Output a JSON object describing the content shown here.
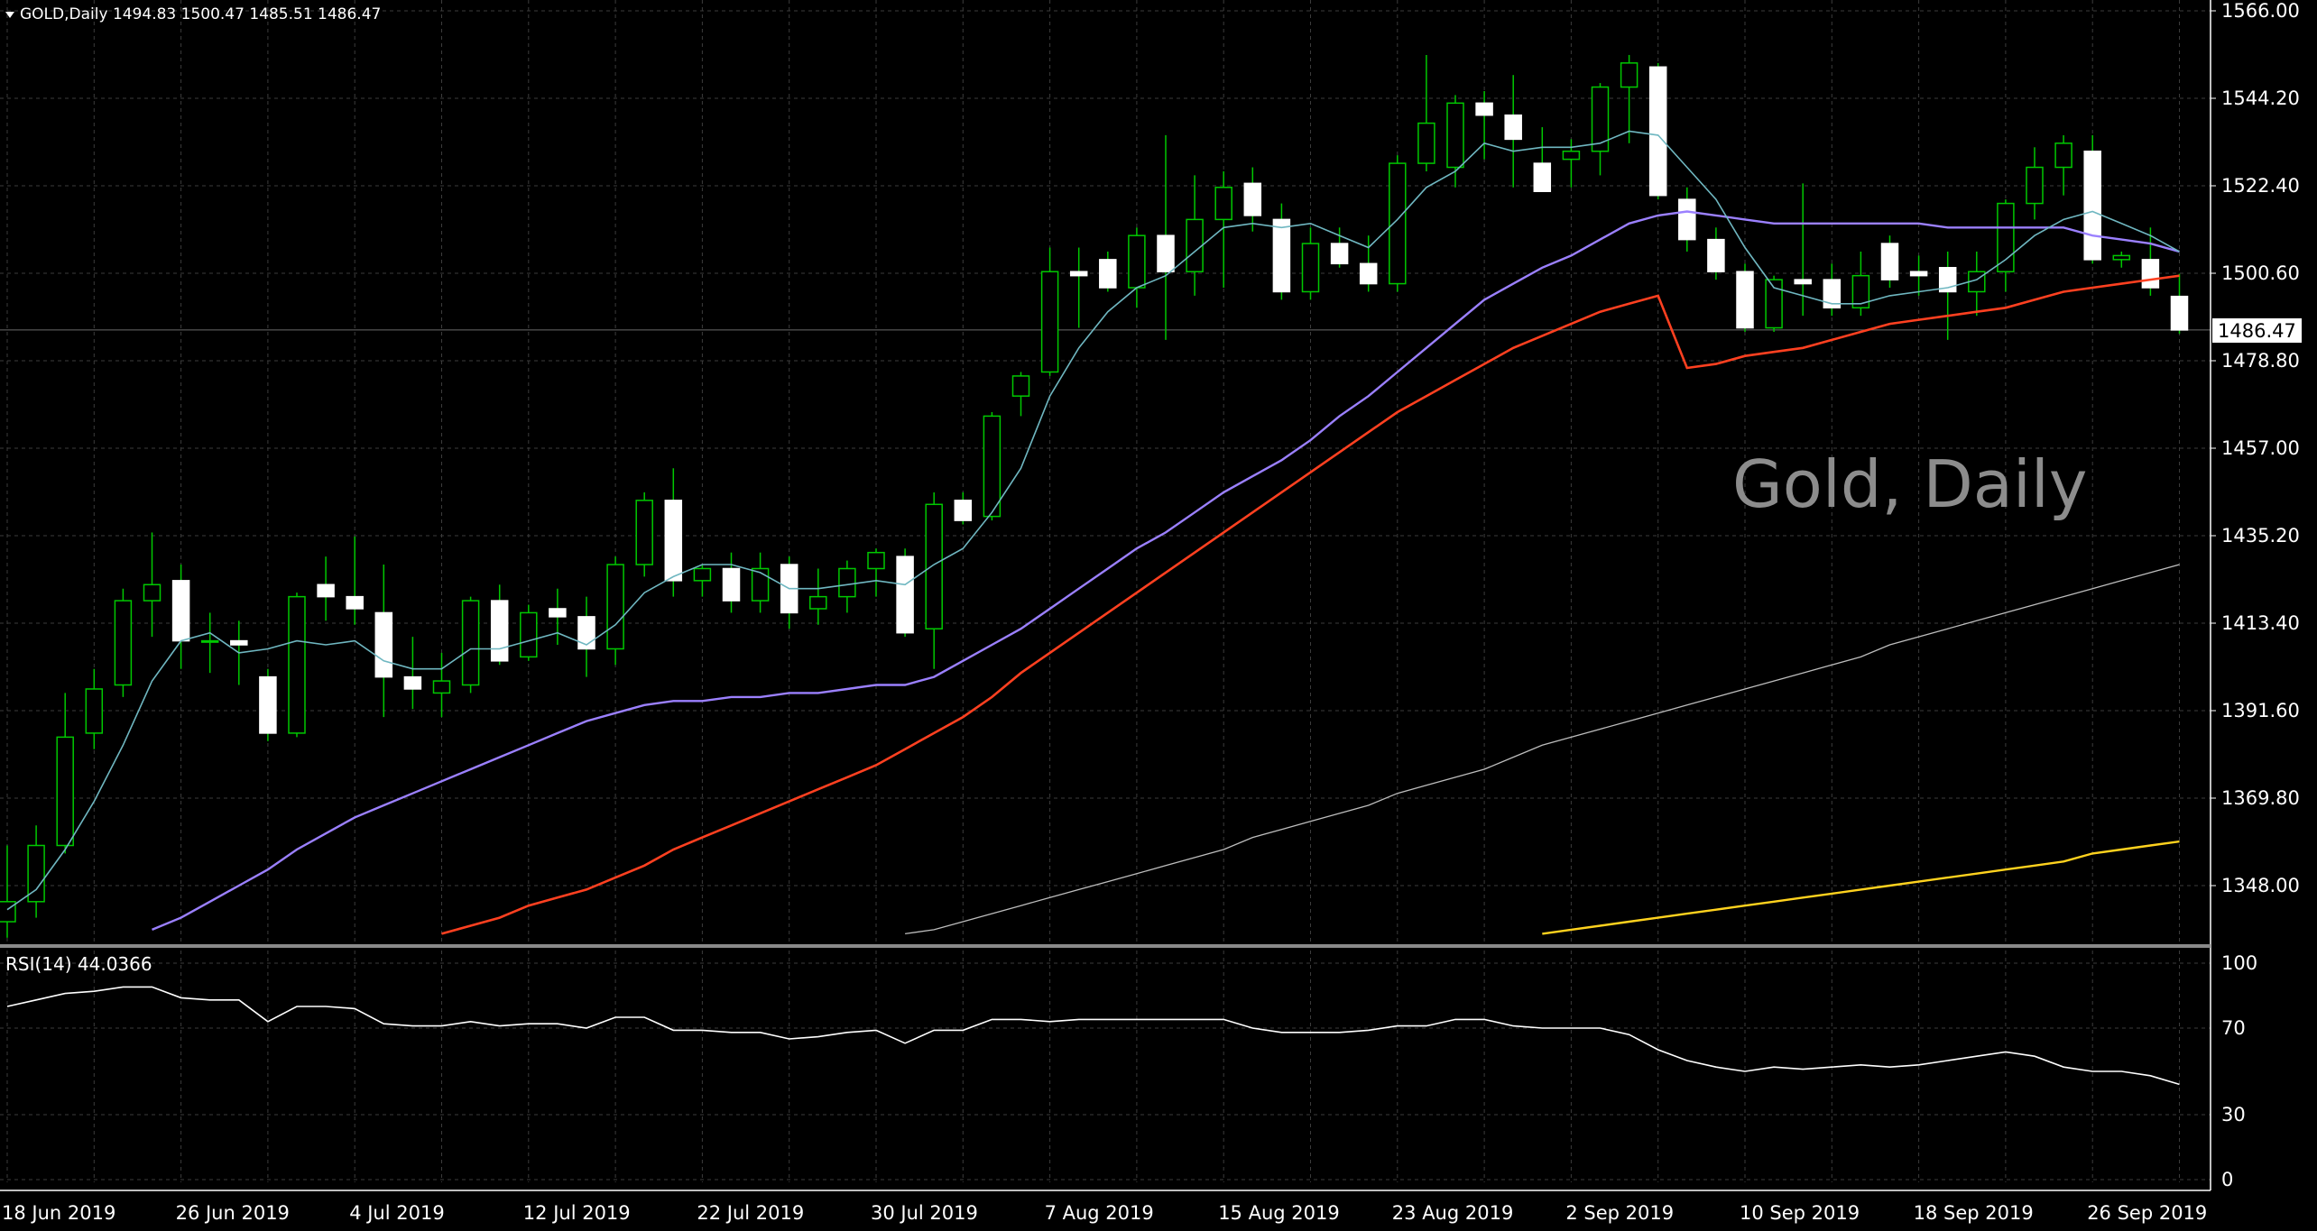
{
  "symbol_header": "GOLD,Daily  1494.83 1500.47 1485.51 1486.47",
  "watermark": "Gold, Daily",
  "current_price_label": "1486.47",
  "rsi_header": "RSI(14) 44.0366",
  "colors": {
    "background": "#000000",
    "grid": "#3c3c3c",
    "axis_text": "#ffffff",
    "bull_candle_outline": "#00c800",
    "bear_candle_fill": "#ffffff",
    "wick": "#00c800",
    "ma_fast": "#6fb7c1",
    "ma_20": "#9b80ff",
    "ma_50": "#ff4020",
    "ma_100": "#bdbdbd",
    "ma_200": "#ffd21e",
    "rsi_line": "#ffffff",
    "watermark": "#8c8c8c"
  },
  "chart_data": [
    {
      "type": "candlestick",
      "title": "GOLD,Daily",
      "y_ticks": [
        "1566.00",
        "1544.20",
        "1522.40",
        "1500.60",
        "1478.80",
        "1457.00",
        "1435.20",
        "1413.40",
        "1391.60",
        "1369.80",
        "1348.00"
      ],
      "y_tick_values": [
        1566.0,
        1544.2,
        1522.4,
        1500.6,
        1478.8,
        1457.0,
        1435.2,
        1413.4,
        1391.6,
        1369.8,
        1348.0
      ],
      "ylim": [
        1336,
        1566
      ],
      "x_ticks": [
        {
          "label": "18 Jun 2019",
          "bar": 0
        },
        {
          "label": "26 Jun 2019",
          "bar": 6
        },
        {
          "label": "4 Jul 2019",
          "bar": 12
        },
        {
          "label": "12 Jul 2019",
          "bar": 18
        },
        {
          "label": "22 Jul 2019",
          "bar": 24
        },
        {
          "label": "30 Jul 2019",
          "bar": 30
        },
        {
          "label": "7 Aug 2019",
          "bar": 36
        },
        {
          "label": "15 Aug 2019",
          "bar": 42
        },
        {
          "label": "23 Aug 2019",
          "bar": 48
        },
        {
          "label": "2 Sep 2019",
          "bar": 54
        },
        {
          "label": "10 Sep 2019",
          "bar": 60
        },
        {
          "label": "18 Sep 2019",
          "bar": 66
        },
        {
          "label": "26 Sep 2019",
          "bar": 72
        }
      ],
      "current_price": 1486.47,
      "candles": [
        {
          "o": 1339,
          "h": 1358,
          "l": 1335,
          "c": 1344
        },
        {
          "o": 1344,
          "h": 1363,
          "l": 1340,
          "c": 1358
        },
        {
          "o": 1358,
          "h": 1396,
          "l": 1356,
          "c": 1385
        },
        {
          "o": 1386,
          "h": 1402,
          "l": 1382,
          "c": 1397
        },
        {
          "o": 1398,
          "h": 1422,
          "l": 1395,
          "c": 1419
        },
        {
          "o": 1419,
          "h": 1436,
          "l": 1410,
          "c": 1423
        },
        {
          "o": 1424,
          "h": 1428,
          "l": 1402,
          "c": 1409
        },
        {
          "o": 1409,
          "h": 1416,
          "l": 1401,
          "c": 1409
        },
        {
          "o": 1409,
          "h": 1414,
          "l": 1398,
          "c": 1408
        },
        {
          "o": 1400,
          "h": 1402,
          "l": 1384,
          "c": 1386
        },
        {
          "o": 1386,
          "h": 1421,
          "l": 1385,
          "c": 1420
        },
        {
          "o": 1423,
          "h": 1430,
          "l": 1414,
          "c": 1420
        },
        {
          "o": 1420,
          "h": 1435,
          "l": 1413,
          "c": 1417
        },
        {
          "o": 1416,
          "h": 1428,
          "l": 1390,
          "c": 1400
        },
        {
          "o": 1400,
          "h": 1410,
          "l": 1392,
          "c": 1397
        },
        {
          "o": 1396,
          "h": 1406,
          "l": 1390,
          "c": 1399
        },
        {
          "o": 1398,
          "h": 1420,
          "l": 1396,
          "c": 1419
        },
        {
          "o": 1419,
          "h": 1423,
          "l": 1403,
          "c": 1404
        },
        {
          "o": 1405,
          "h": 1418,
          "l": 1404,
          "c": 1416
        },
        {
          "o": 1417,
          "h": 1422,
          "l": 1408,
          "c": 1415
        },
        {
          "o": 1415,
          "h": 1420,
          "l": 1400,
          "c": 1407
        },
        {
          "o": 1407,
          "h": 1430,
          "l": 1403,
          "c": 1428
        },
        {
          "o": 1428,
          "h": 1446,
          "l": 1425,
          "c": 1444
        },
        {
          "o": 1444,
          "h": 1452,
          "l": 1420,
          "c": 1424
        },
        {
          "o": 1424,
          "h": 1428,
          "l": 1420,
          "c": 1427
        },
        {
          "o": 1427,
          "h": 1431,
          "l": 1416,
          "c": 1419
        },
        {
          "o": 1419,
          "h": 1431,
          "l": 1416,
          "c": 1427
        },
        {
          "o": 1428,
          "h": 1430,
          "l": 1412,
          "c": 1416
        },
        {
          "o": 1417,
          "h": 1427,
          "l": 1413,
          "c": 1420
        },
        {
          "o": 1420,
          "h": 1429,
          "l": 1416,
          "c": 1427
        },
        {
          "o": 1427,
          "h": 1432,
          "l": 1420,
          "c": 1431
        },
        {
          "o": 1430,
          "h": 1432,
          "l": 1410,
          "c": 1411
        },
        {
          "o": 1412,
          "h": 1446,
          "l": 1402,
          "c": 1443
        },
        {
          "o": 1444,
          "h": 1446,
          "l": 1438,
          "c": 1439
        },
        {
          "o": 1440,
          "h": 1466,
          "l": 1439,
          "c": 1465
        },
        {
          "o": 1470,
          "h": 1476,
          "l": 1465,
          "c": 1475
        },
        {
          "o": 1476,
          "h": 1507,
          "l": 1475,
          "c": 1501
        },
        {
          "o": 1501,
          "h": 1507,
          "l": 1487,
          "c": 1500
        },
        {
          "o": 1504,
          "h": 1506,
          "l": 1496,
          "c": 1497
        },
        {
          "o": 1497,
          "h": 1512,
          "l": 1492,
          "c": 1510
        },
        {
          "o": 1510,
          "h": 1535,
          "l": 1484,
          "c": 1501
        },
        {
          "o": 1501,
          "h": 1525,
          "l": 1495,
          "c": 1514
        },
        {
          "o": 1514,
          "h": 1526,
          "l": 1497,
          "c": 1522
        },
        {
          "o": 1523,
          "h": 1527,
          "l": 1511,
          "c": 1515
        },
        {
          "o": 1514,
          "h": 1518,
          "l": 1494,
          "c": 1496
        },
        {
          "o": 1496,
          "h": 1512,
          "l": 1494,
          "c": 1508
        },
        {
          "o": 1508,
          "h": 1512,
          "l": 1502,
          "c": 1503
        },
        {
          "o": 1503,
          "h": 1510,
          "l": 1496,
          "c": 1498
        },
        {
          "o": 1498,
          "h": 1530,
          "l": 1496,
          "c": 1528
        },
        {
          "o": 1528,
          "h": 1555,
          "l": 1526,
          "c": 1538
        },
        {
          "o": 1527,
          "h": 1545,
          "l": 1522,
          "c": 1543
        },
        {
          "o": 1543,
          "h": 1546,
          "l": 1529,
          "c": 1540
        },
        {
          "o": 1540,
          "h": 1550,
          "l": 1522,
          "c": 1534
        },
        {
          "o": 1528,
          "h": 1537,
          "l": 1521,
          "c": 1521
        },
        {
          "o": 1529,
          "h": 1534,
          "l": 1522,
          "c": 1531
        },
        {
          "o": 1531,
          "h": 1548,
          "l": 1525,
          "c": 1547
        },
        {
          "o": 1547,
          "h": 1555,
          "l": 1533,
          "c": 1553
        },
        {
          "o": 1552,
          "h": 1553,
          "l": 1519,
          "c": 1520
        },
        {
          "o": 1519,
          "h": 1522,
          "l": 1506,
          "c": 1509
        },
        {
          "o": 1509,
          "h": 1512,
          "l": 1499,
          "c": 1501
        },
        {
          "o": 1501,
          "h": 1503,
          "l": 1486,
          "c": 1487
        },
        {
          "o": 1487,
          "h": 1500,
          "l": 1486,
          "c": 1499
        },
        {
          "o": 1499,
          "h": 1523,
          "l": 1490,
          "c": 1498
        },
        {
          "o": 1499,
          "h": 1503,
          "l": 1490,
          "c": 1492
        },
        {
          "o": 1492,
          "h": 1506,
          "l": 1490,
          "c": 1500
        },
        {
          "o": 1508,
          "h": 1510,
          "l": 1497,
          "c": 1499
        },
        {
          "o": 1501,
          "h": 1505,
          "l": 1495,
          "c": 1500
        },
        {
          "o": 1502,
          "h": 1506,
          "l": 1484,
          "c": 1496
        },
        {
          "o": 1496,
          "h": 1506,
          "l": 1490,
          "c": 1501
        },
        {
          "o": 1501,
          "h": 1519,
          "l": 1496,
          "c": 1518
        },
        {
          "o": 1518,
          "h": 1532,
          "l": 1514,
          "c": 1527
        },
        {
          "o": 1527,
          "h": 1535,
          "l": 1520,
          "c": 1533
        },
        {
          "o": 1531,
          "h": 1535,
          "l": 1503,
          "c": 1504
        },
        {
          "o": 1504,
          "h": 1506,
          "l": 1502,
          "c": 1505
        },
        {
          "o": 1504,
          "h": 1512,
          "l": 1495,
          "c": 1497
        },
        {
          "o": 1494.83,
          "h": 1500.47,
          "l": 1485.51,
          "c": 1486.47
        }
      ],
      "ma_fast": [
        1342,
        1347,
        1357,
        1369,
        1383,
        1399,
        1409,
        1411,
        1406,
        1407,
        1409,
        1408,
        1409,
        1404,
        1402,
        1402,
        1407,
        1407,
        1409,
        1411,
        1408,
        1413,
        1421,
        1425,
        1428,
        1428,
        1426,
        1422,
        1422,
        1423,
        1424,
        1423,
        1428,
        1432,
        1441,
        1452,
        1470,
        1482,
        1491,
        1497,
        1500,
        1506,
        1512,
        1513,
        1512,
        1513,
        1510,
        1507,
        1514,
        1522,
        1526,
        1533,
        1531,
        1532,
        1532,
        1533,
        1536,
        1535,
        1527,
        1519,
        1507,
        1497,
        1495,
        1493,
        1493,
        1495,
        1496,
        1497,
        1499,
        1504,
        1510,
        1514,
        1516,
        1513,
        1510,
        1506
      ],
      "ma_20": [
        null,
        null,
        null,
        null,
        null,
        1337,
        1340,
        1344,
        1348,
        1352,
        1357,
        1361,
        1365,
        1368,
        1371,
        1374,
        1377,
        1380,
        1383,
        1386,
        1389,
        1391,
        1393,
        1394,
        1394,
        1395,
        1395,
        1396,
        1396,
        1397,
        1398,
        1398,
        1400,
        1404,
        1408,
        1412,
        1417,
        1422,
        1427,
        1432,
        1436,
        1441,
        1446,
        1450,
        1454,
        1459,
        1465,
        1470,
        1476,
        1482,
        1488,
        1494,
        1498,
        1502,
        1505,
        1509,
        1513,
        1515,
        1516,
        1515,
        1514,
        1513,
        1513,
        1513,
        1513,
        1513,
        1513,
        1512,
        1512,
        1512,
        1512,
        1512,
        1510,
        1509,
        1508,
        1506
      ],
      "ma_50": [
        null,
        null,
        null,
        null,
        null,
        null,
        null,
        null,
        null,
        null,
        null,
        null,
        null,
        null,
        null,
        1336,
        1338,
        1340,
        1343,
        1345,
        1347,
        1350,
        1353,
        1357,
        1360,
        1363,
        1366,
        1369,
        1372,
        1375,
        1378,
        1382,
        1386,
        1390,
        1395,
        1401,
        1406,
        1411,
        1416,
        1421,
        1426,
        1431,
        1436,
        1441,
        1446,
        1451,
        1456,
        1461,
        1466,
        1470,
        1474,
        1478,
        1482,
        1485,
        1488,
        1491,
        1493,
        1495,
        1477,
        1478,
        1480,
        1481,
        1482,
        1484,
        1486,
        1488,
        1489,
        1490,
        1491,
        1492,
        1494,
        1496,
        1497,
        1498,
        1499,
        1500
      ],
      "ma_100": [
        null,
        null,
        null,
        null,
        null,
        null,
        null,
        null,
        null,
        null,
        null,
        null,
        null,
        null,
        null,
        null,
        null,
        null,
        null,
        null,
        null,
        null,
        null,
        null,
        null,
        null,
        null,
        null,
        null,
        null,
        null,
        1336,
        1337,
        1339,
        1341,
        1343,
        1345,
        1347,
        1349,
        1351,
        1353,
        1355,
        1357,
        1360,
        1362,
        1364,
        1366,
        1368,
        1371,
        1373,
        1375,
        1377,
        1380,
        1383,
        1385,
        1387,
        1389,
        1391,
        1393,
        1395,
        1397,
        1399,
        1401,
        1403,
        1405,
        1408,
        1410,
        1412,
        1414,
        1416,
        1418,
        1420,
        1422,
        1424,
        1426,
        1428
      ],
      "ma_200": [
        null,
        null,
        null,
        null,
        null,
        null,
        null,
        null,
        null,
        null,
        null,
        null,
        null,
        null,
        null,
        null,
        null,
        null,
        null,
        null,
        null,
        null,
        null,
        null,
        null,
        null,
        null,
        null,
        null,
        null,
        null,
        null,
        null,
        null,
        null,
        null,
        null,
        null,
        null,
        null,
        null,
        null,
        null,
        null,
        null,
        null,
        null,
        null,
        null,
        null,
        null,
        null,
        null,
        1336,
        1337,
        1338,
        1339,
        1340,
        1341,
        1342,
        1343,
        1344,
        1345,
        1346,
        1347,
        1348,
        1349,
        1350,
        1351,
        1352,
        1353,
        1354,
        1356,
        1357,
        1358,
        1359
      ]
    },
    {
      "type": "line",
      "title": "RSI(14) 44.0366",
      "y_ticks": [
        "100",
        "70",
        "30",
        "0"
      ],
      "y_tick_values": [
        100,
        70,
        30,
        0
      ],
      "ylim": [
        0,
        100
      ],
      "series": [
        {
          "values": [
            80,
            83,
            86,
            87,
            89,
            89,
            84,
            83,
            83,
            73,
            80,
            80,
            79,
            72,
            71,
            71,
            73,
            71,
            72,
            72,
            70,
            75,
            75,
            69,
            69,
            68,
            68,
            65,
            66,
            68,
            69,
            63,
            69,
            69,
            74,
            74,
            73,
            74,
            74,
            74,
            74,
            74,
            74,
            70,
            68,
            68,
            68,
            69,
            71,
            71,
            74,
            74,
            71,
            70,
            70,
            70,
            67,
            60,
            55,
            52,
            50,
            52,
            51,
            52,
            53,
            52,
            53,
            55,
            57,
            59,
            57,
            52,
            50,
            50,
            48,
            44
          ]
        }
      ]
    }
  ]
}
